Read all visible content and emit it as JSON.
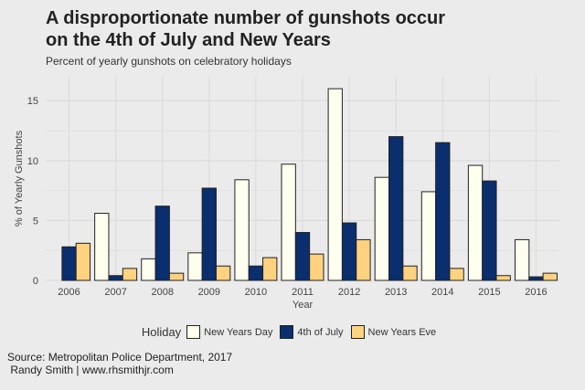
{
  "title_line1": "A disproportionate number of gunshots occur",
  "title_line2": "on the 4th of July and New Years",
  "subtitle": "Percent of yearly gunshots on celebratory holidays",
  "caption_line1": "Source: Metropolitan Police Department, 2017",
  "caption_line2": " Randy Smith | www.rhsmithjr.com",
  "legend_title": "Holiday",
  "chart_data": {
    "type": "bar",
    "title": "A disproportionate number of gunshots occur on the 4th of July and New Years",
    "subtitle": "Percent of yearly gunshots on celebratory holidays",
    "xlabel": "Year",
    "ylabel": "% of Yearly Gunshots",
    "ylim": [
      0,
      17
    ],
    "yticks": [
      0,
      5,
      10,
      15
    ],
    "grid": true,
    "legend_position": "bottom",
    "categories": [
      "2006",
      "2007",
      "2008",
      "2009",
      "2010",
      "2011",
      "2012",
      "2013",
      "2014",
      "2015",
      "2016"
    ],
    "series": [
      {
        "name": "New Years Day",
        "color": "#fffff0",
        "values": [
          null,
          5.6,
          1.8,
          2.3,
          8.4,
          9.7,
          16.0,
          8.6,
          7.4,
          9.6,
          3.4
        ]
      },
      {
        "name": "4th of July",
        "color": "#0a2e6e",
        "values": [
          2.8,
          0.4,
          6.2,
          7.7,
          1.2,
          4.0,
          4.8,
          12.0,
          11.5,
          8.3,
          0.3
        ]
      },
      {
        "name": "New Years Eve",
        "color": "#ffd280",
        "values": [
          3.1,
          1.0,
          0.6,
          1.2,
          1.9,
          2.2,
          3.4,
          1.2,
          1.0,
          0.4,
          0.6
        ]
      }
    ]
  }
}
